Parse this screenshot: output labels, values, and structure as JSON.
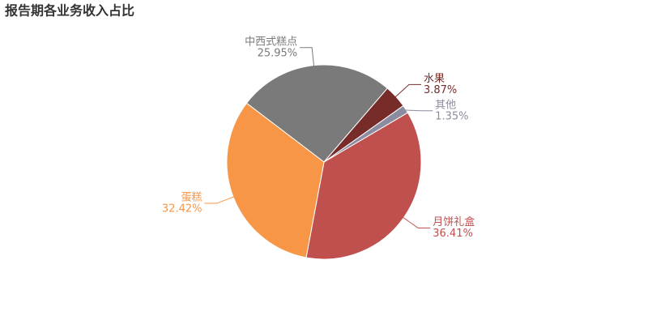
{
  "chart_data": {
    "type": "pie",
    "title": "报告期各业务收入占比",
    "categories": [
      "月饼礼盒",
      "蛋糕",
      "中西式糕点",
      "水果",
      "其他"
    ],
    "values": [
      36.41,
      32.42,
      25.95,
      3.87,
      1.35
    ],
    "value_labels": [
      "36.41%",
      "32.42%",
      "25.95%",
      "3.87%",
      "1.35%"
    ],
    "colors": [
      "#c0504d",
      "#f79646",
      "#7a7a7a",
      "#772c2a",
      "#8c8ca0"
    ]
  }
}
